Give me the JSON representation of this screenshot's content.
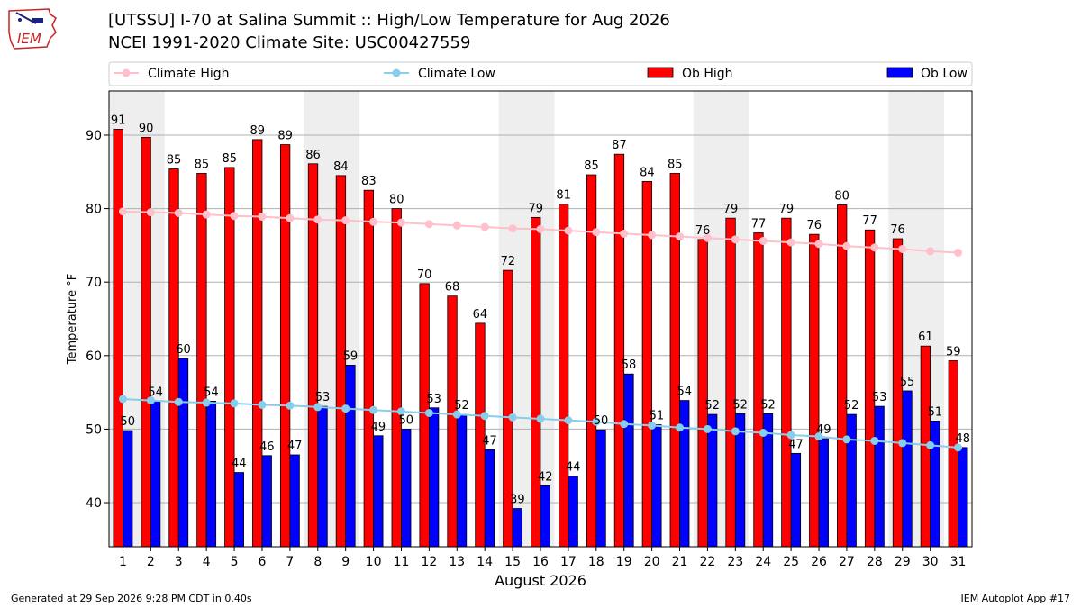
{
  "header": {
    "title_line1": "[UTSSU] I-70 at Salina Summit  :: High/Low Temperature for Aug 2026",
    "title_line2": "NCEI 1991-2020 Climate Site: USC00427559",
    "logo_text": "IEM"
  },
  "footer": {
    "generated": "Generated at 29 Sep 2026 9:28 PM CDT in 0.40s",
    "app": "IEM Autoplot App #17"
  },
  "colors": {
    "climate_high": "#ffc0cb",
    "climate_low": "#87ceeb",
    "ob_high": "#ff0000",
    "ob_low": "#0000ff",
    "weekend_shade": "#eeeeee",
    "logo": "#cc2222"
  },
  "chart_data": {
    "type": "bar",
    "xlabel": "August 2026",
    "ylabel": "Temperature °F",
    "ylim": [
      34,
      96
    ],
    "yticks": [
      40,
      50,
      60,
      70,
      80,
      90
    ],
    "grid": "horizontal",
    "legend_placement": "top",
    "categories": [
      "1",
      "2",
      "3",
      "4",
      "5",
      "6",
      "7",
      "8",
      "9",
      "10",
      "11",
      "12",
      "13",
      "14",
      "15",
      "16",
      "17",
      "18",
      "19",
      "20",
      "21",
      "22",
      "23",
      "24",
      "25",
      "26",
      "27",
      "28",
      "29",
      "30",
      "31"
    ],
    "shaded_days": [
      "1",
      "2",
      "8",
      "9",
      "15",
      "16",
      "22",
      "23",
      "29",
      "30"
    ],
    "series": [
      {
        "name": "Ob High",
        "kind": "bar",
        "values": [
          91,
          90,
          85,
          85,
          85,
          89,
          89,
          86,
          84,
          83,
          80,
          70,
          68,
          64,
          72,
          79,
          81,
          85,
          87,
          84,
          85,
          76,
          79,
          77,
          79,
          76,
          80,
          77,
          76,
          61,
          59
        ],
        "plotted": [
          90.8,
          89.7,
          85.4,
          84.8,
          85.6,
          89.4,
          88.7,
          86.1,
          84.5,
          82.5,
          80.0,
          69.8,
          68.1,
          64.4,
          71.6,
          78.8,
          80.6,
          84.6,
          87.4,
          83.7,
          84.8,
          75.8,
          78.7,
          76.7,
          78.7,
          76.5,
          80.5,
          77.1,
          75.9,
          61.3,
          59.3
        ]
      },
      {
        "name": "Ob Low",
        "kind": "bar",
        "values": [
          50,
          54,
          60,
          54,
          44,
          46,
          47,
          53,
          59,
          49,
          50,
          53,
          52,
          47,
          39,
          42,
          44,
          50,
          58,
          51,
          54,
          52,
          52,
          52,
          47,
          49,
          52,
          53,
          55,
          51,
          48
        ],
        "plotted": [
          49.8,
          53.8,
          59.6,
          53.8,
          44.1,
          46.4,
          46.5,
          53.1,
          58.7,
          49.1,
          50.0,
          52.9,
          52.0,
          47.2,
          39.2,
          42.3,
          43.6,
          49.9,
          57.5,
          50.6,
          53.9,
          52.0,
          52.1,
          52.1,
          46.7,
          48.7,
          52.0,
          53.1,
          55.2,
          51.1,
          47.5
        ]
      },
      {
        "name": "Climate High",
        "kind": "line",
        "values": [
          79.6,
          79.5,
          79.4,
          79.2,
          79.0,
          78.9,
          78.7,
          78.5,
          78.4,
          78.2,
          78.1,
          77.9,
          77.7,
          77.5,
          77.3,
          77.2,
          77.0,
          76.8,
          76.6,
          76.4,
          76.2,
          76.0,
          75.8,
          75.6,
          75.4,
          75.2,
          74.9,
          74.7,
          74.5,
          74.2,
          74.0
        ]
      },
      {
        "name": "Climate Low",
        "kind": "line",
        "values": [
          54.1,
          53.9,
          53.7,
          53.6,
          53.5,
          53.3,
          53.2,
          53.0,
          52.8,
          52.6,
          52.4,
          52.2,
          52.0,
          51.8,
          51.6,
          51.4,
          51.2,
          51.0,
          50.7,
          50.5,
          50.2,
          50.0,
          49.7,
          49.5,
          49.2,
          49.0,
          48.6,
          48.4,
          48.1,
          47.8,
          47.5
        ]
      }
    ]
  }
}
